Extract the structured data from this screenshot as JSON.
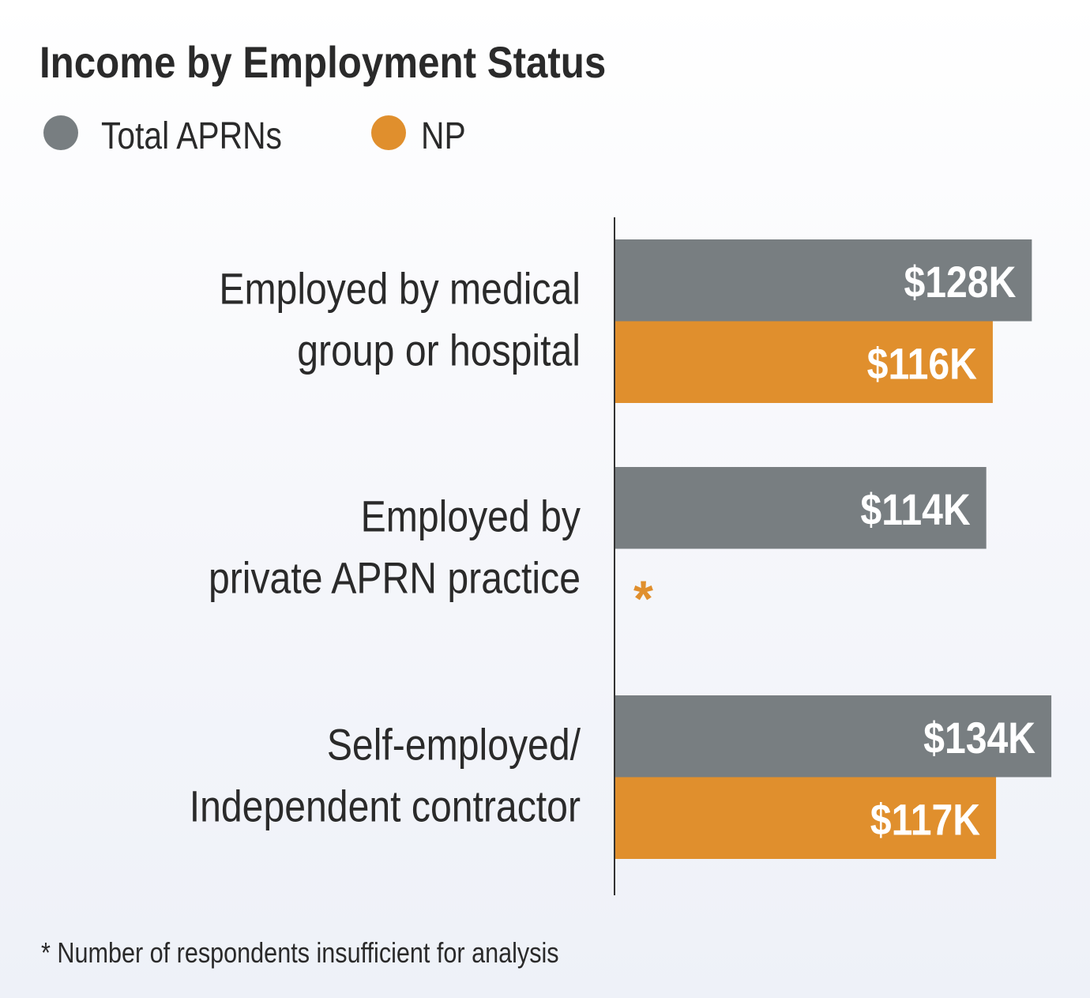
{
  "chart_data": {
    "type": "bar",
    "orientation": "horizontal",
    "title": "Income by Employment Status",
    "categories": [
      [
        "Employed by medical",
        "group or hospital"
      ],
      [
        "Employed by",
        "private APRN practice"
      ],
      [
        "Self-employed/",
        "Independent contractor"
      ]
    ],
    "series": [
      {
        "name": "Total APRNs",
        "color": "#787e81",
        "values": [
          128,
          114,
          134
        ],
        "labels": [
          "$128K",
          "$114K",
          "$134K"
        ]
      },
      {
        "name": "NP",
        "color": "#e08f2d",
        "values": [
          116,
          null,
          117
        ],
        "labels": [
          "$116K",
          "*",
          "$117K"
        ]
      }
    ],
    "units": "thousands USD",
    "xlim": [
      0,
      135
    ],
    "grid": false,
    "legend": "top-left",
    "footnote": "* Number of respondents insufficient for analysis"
  }
}
